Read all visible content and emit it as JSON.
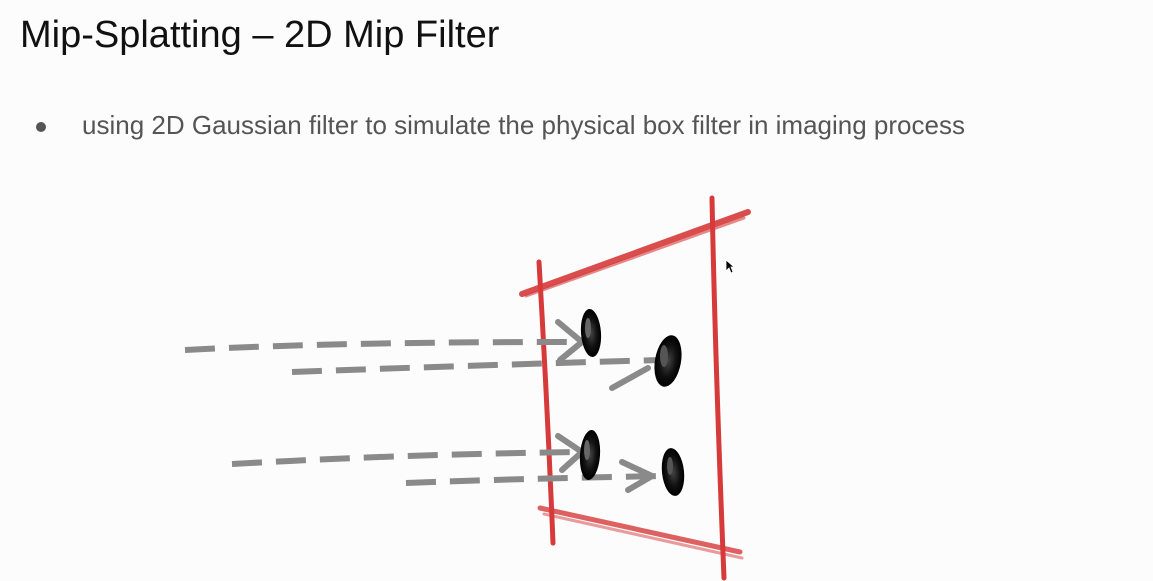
{
  "slide": {
    "title": "Mip-Splatting – 2D Mip Filter",
    "bullets": [
      "using 2D Gaussian filter to simulate the physical box filter in imaging process"
    ]
  },
  "colors": {
    "background": "#fcfcfc",
    "title_text": "#111111",
    "bullet_text": "#555555",
    "frame_red": "#d63a3a",
    "ray_gray": "#8a8a8a",
    "gaussian_black": "#111111"
  },
  "icons": {
    "cursor": "mouse-pointer-icon"
  }
}
